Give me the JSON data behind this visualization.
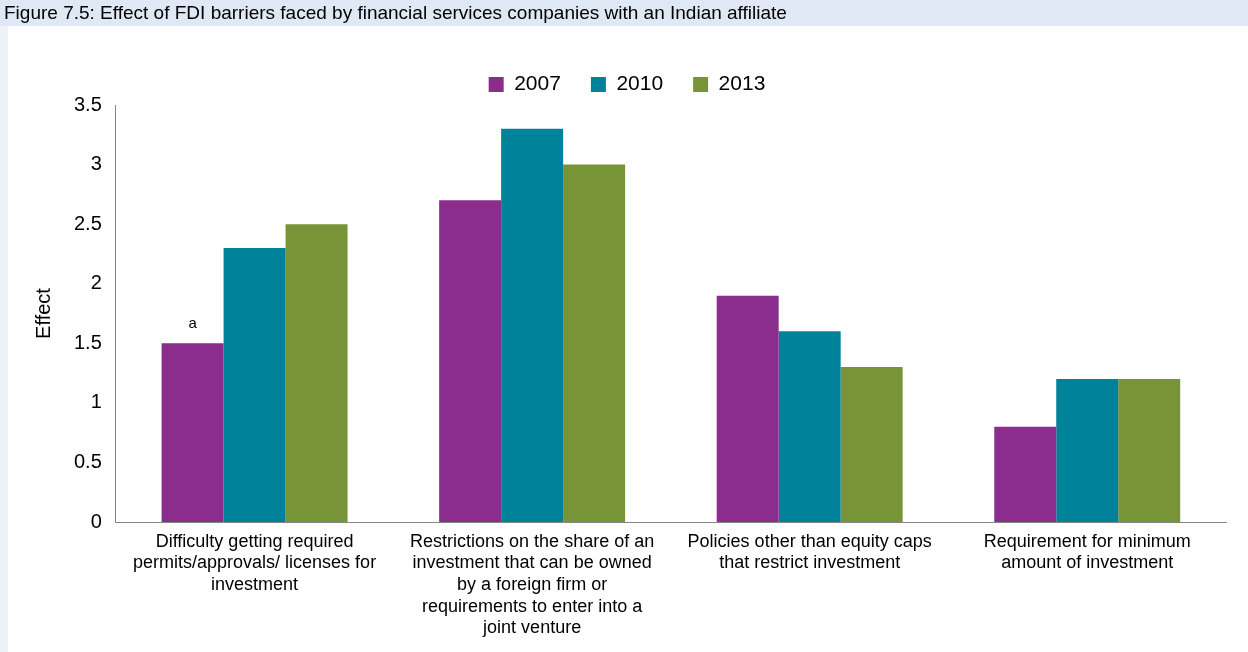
{
  "chart_data": {
    "type": "bar",
    "title": "Figure 7.5: Effect of FDI barriers faced by financial services companies with an Indian affiliate",
    "ylabel": "Effect",
    "categories": [
      "Difficulty getting required permits/approvals/ licenses for investment",
      "Restrictions on the share of an investment that can be owned by a foreign firm or requirements to enter into a joint venture",
      "Policies other than equity caps that restrict investment",
      "Requirement for minimum amount of investment"
    ],
    "series": [
      {
        "name": "2007",
        "color": "#8b2d8c",
        "values": [
          1.5,
          2.7,
          1.9,
          0.8
        ],
        "value_labels": [
          "a",
          null,
          null,
          null
        ]
      },
      {
        "name": "2010",
        "color": "#00829a",
        "values": [
          2.3,
          3.3,
          1.6,
          1.2
        ]
      },
      {
        "name": "2013",
        "color": "#779436",
        "values": [
          2.5,
          3.0,
          1.3,
          1.2
        ]
      }
    ],
    "ylim": [
      0,
      3.5
    ],
    "yticks": [
      0,
      0.5,
      1,
      1.5,
      2,
      2.5,
      3,
      3.5
    ],
    "grid": false,
    "legend": "top"
  }
}
